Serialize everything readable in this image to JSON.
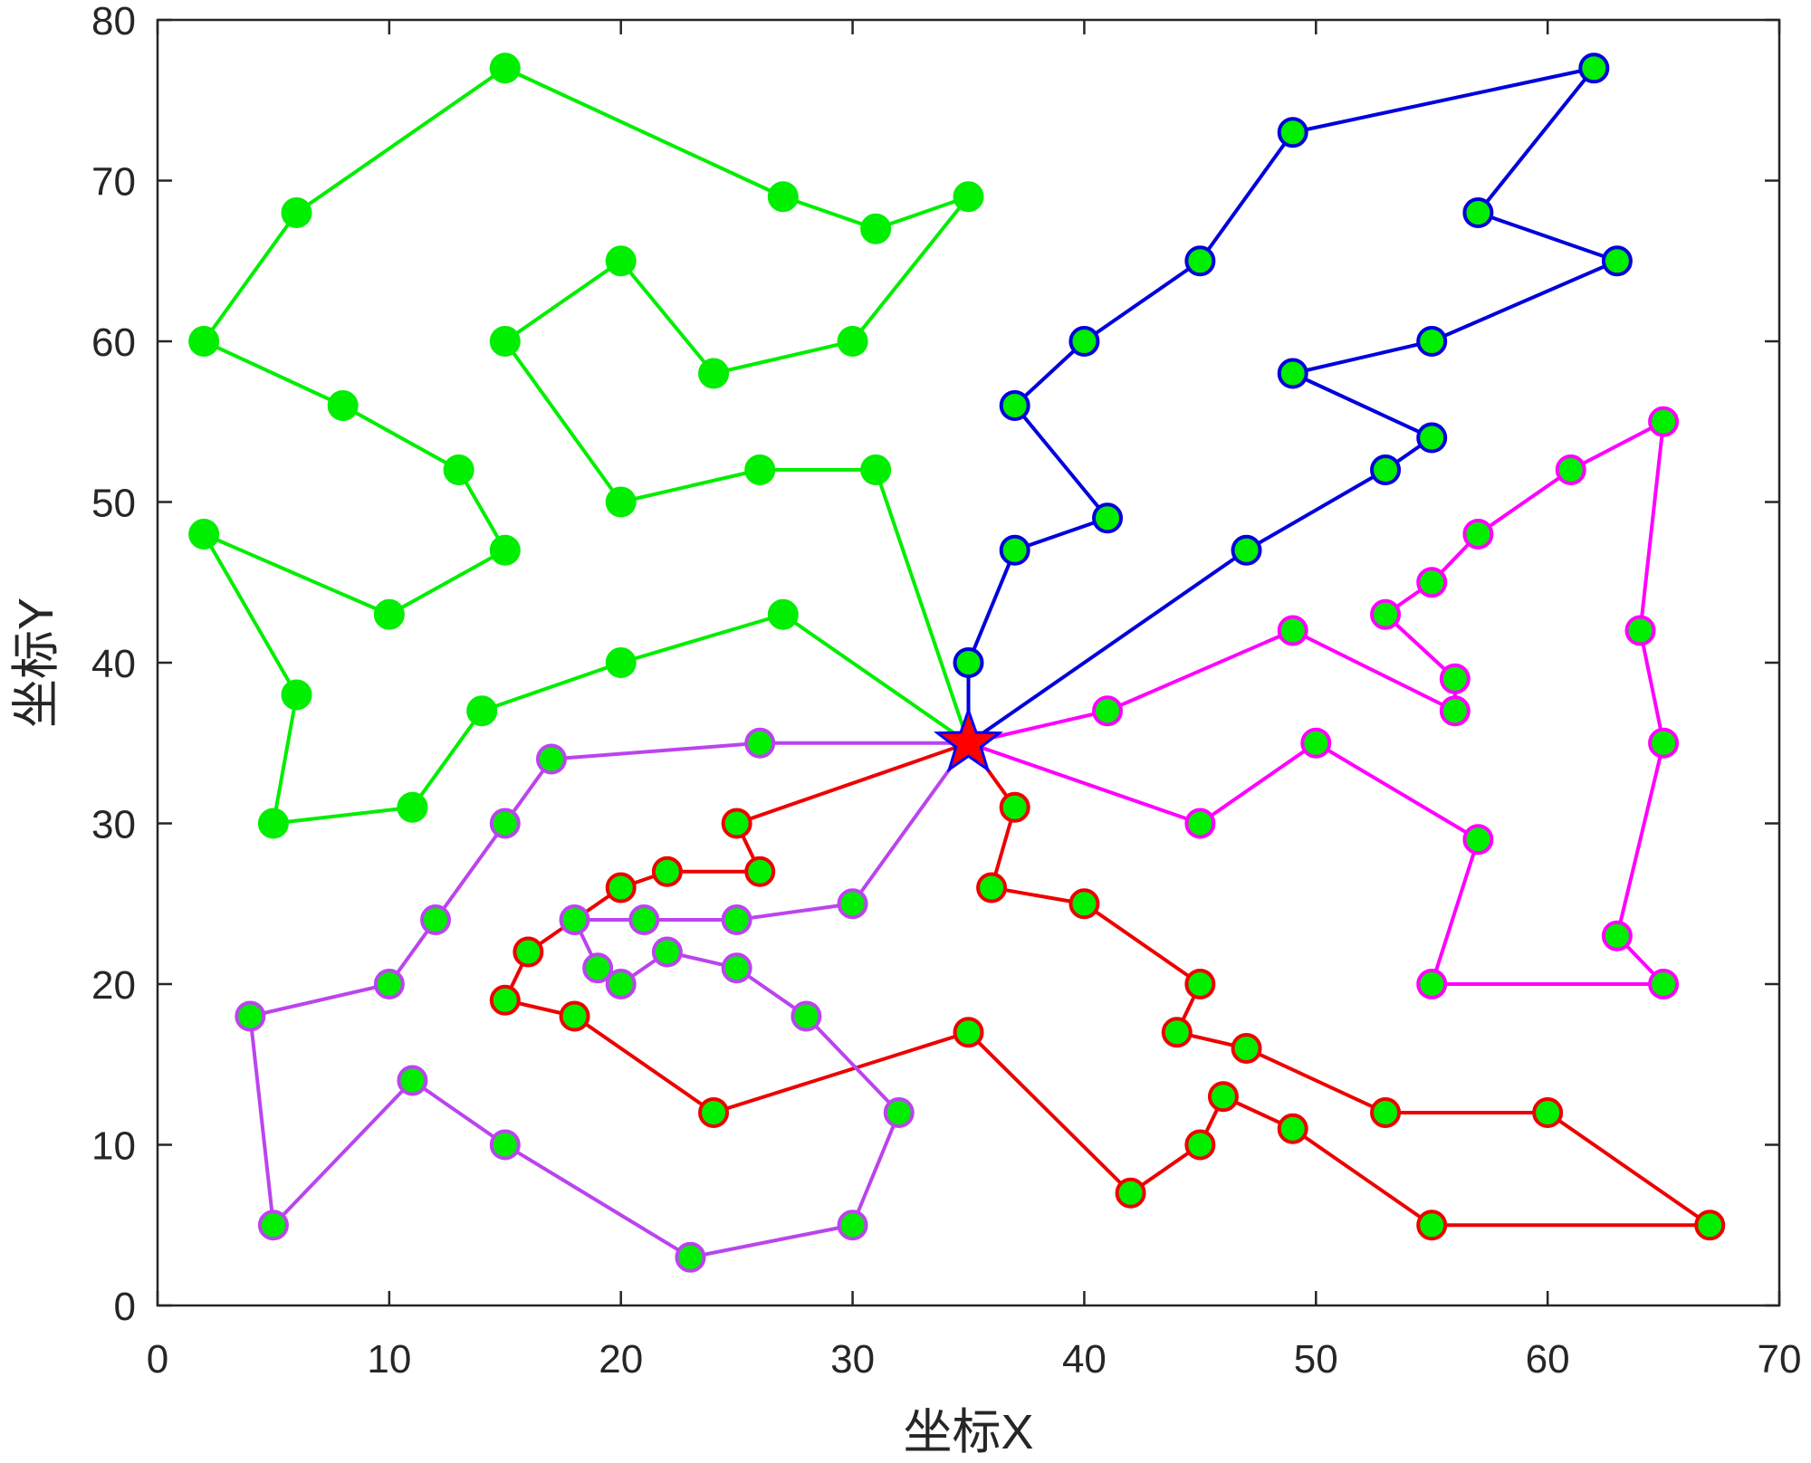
{
  "chart_data": {
    "type": "line",
    "title": "",
    "xlabel": "坐标X",
    "ylabel": "坐标Y",
    "xlim": [
      0,
      70
    ],
    "ylim": [
      0,
      80
    ],
    "xticks": [
      0,
      10,
      20,
      30,
      40,
      50,
      60,
      70
    ],
    "yticks": [
      0,
      10,
      20,
      30,
      40,
      50,
      60,
      70,
      80
    ],
    "grid": false,
    "legend": "none",
    "marker_fill": "#00ee00",
    "depot": {
      "x": 35,
      "y": 35,
      "marker": "star",
      "fill": "#ff0000",
      "edge": "#0000ff"
    },
    "series": [
      {
        "color": "#00ee00",
        "marker_edge": "#00ee00",
        "points": [
          [
            35,
            35
          ],
          [
            27,
            43
          ],
          [
            20,
            40
          ],
          [
            14,
            37
          ],
          [
            11,
            31
          ],
          [
            5,
            30
          ],
          [
            6,
            38
          ],
          [
            2,
            48
          ],
          [
            10,
            43
          ],
          [
            15,
            47
          ],
          [
            13,
            52
          ],
          [
            8,
            56
          ],
          [
            2,
            60
          ],
          [
            6,
            68
          ],
          [
            15,
            77
          ],
          [
            27,
            69
          ],
          [
            31,
            67
          ],
          [
            35,
            69
          ],
          [
            30,
            60
          ],
          [
            24,
            58
          ],
          [
            20,
            65
          ],
          [
            15,
            60
          ],
          [
            20,
            50
          ],
          [
            26,
            52
          ],
          [
            31,
            52
          ],
          [
            35,
            35
          ]
        ]
      },
      {
        "color": "#0000dd",
        "marker_edge": "#0000dd",
        "points": [
          [
            35,
            35
          ],
          [
            35,
            40
          ],
          [
            37,
            47
          ],
          [
            41,
            49
          ],
          [
            37,
            56
          ],
          [
            40,
            60
          ],
          [
            45,
            65
          ],
          [
            49,
            73
          ],
          [
            62,
            77
          ],
          [
            57,
            68
          ],
          [
            63,
            65
          ],
          [
            55,
            60
          ],
          [
            49,
            58
          ],
          [
            55,
            54
          ],
          [
            53,
            52
          ],
          [
            47,
            47
          ],
          [
            35,
            35
          ]
        ]
      },
      {
        "color": "#ff00ff",
        "marker_edge": "#ff00ff",
        "points": [
          [
            35,
            35
          ],
          [
            41,
            37
          ],
          [
            49,
            42
          ],
          [
            56,
            37
          ],
          [
            56,
            39
          ],
          [
            53,
            43
          ],
          [
            55,
            45
          ],
          [
            57,
            48
          ],
          [
            61,
            52
          ],
          [
            65,
            55
          ],
          [
            64,
            42
          ],
          [
            65,
            35
          ],
          [
            63,
            23
          ],
          [
            65,
            20
          ],
          [
            55,
            20
          ],
          [
            57,
            29
          ],
          [
            50,
            35
          ],
          [
            45,
            30
          ],
          [
            35,
            35
          ]
        ]
      },
      {
        "color": "#ee0000",
        "marker_edge": "#ee0000",
        "points": [
          [
            35,
            35
          ],
          [
            37,
            31
          ],
          [
            36,
            26
          ],
          [
            40,
            25
          ],
          [
            45,
            20
          ],
          [
            44,
            17
          ],
          [
            47,
            16
          ],
          [
            53,
            12
          ],
          [
            60,
            12
          ],
          [
            67,
            5
          ],
          [
            55,
            5
          ],
          [
            49,
            11
          ],
          [
            46,
            13
          ],
          [
            45,
            10
          ],
          [
            42,
            7
          ],
          [
            35,
            17
          ],
          [
            24,
            12
          ],
          [
            18,
            18
          ],
          [
            15,
            19
          ],
          [
            16,
            22
          ],
          [
            20,
            26
          ],
          [
            22,
            27
          ],
          [
            26,
            27
          ],
          [
            25,
            30
          ],
          [
            35,
            35
          ]
        ]
      },
      {
        "color": "#bb44ee",
        "marker_edge": "#bb44ee",
        "points": [
          [
            35,
            35
          ],
          [
            30,
            25
          ],
          [
            25,
            24
          ],
          [
            21,
            24
          ],
          [
            18,
            24
          ],
          [
            19,
            21
          ],
          [
            20,
            20
          ],
          [
            22,
            22
          ],
          [
            25,
            21
          ],
          [
            28,
            18
          ],
          [
            32,
            12
          ],
          [
            30,
            5
          ],
          [
            23,
            3
          ],
          [
            15,
            10
          ],
          [
            11,
            14
          ],
          [
            5,
            5
          ],
          [
            4,
            18
          ],
          [
            10,
            20
          ],
          [
            12,
            24
          ],
          [
            15,
            30
          ],
          [
            17,
            34
          ],
          [
            26,
            35
          ],
          [
            35,
            35
          ]
        ]
      }
    ]
  }
}
